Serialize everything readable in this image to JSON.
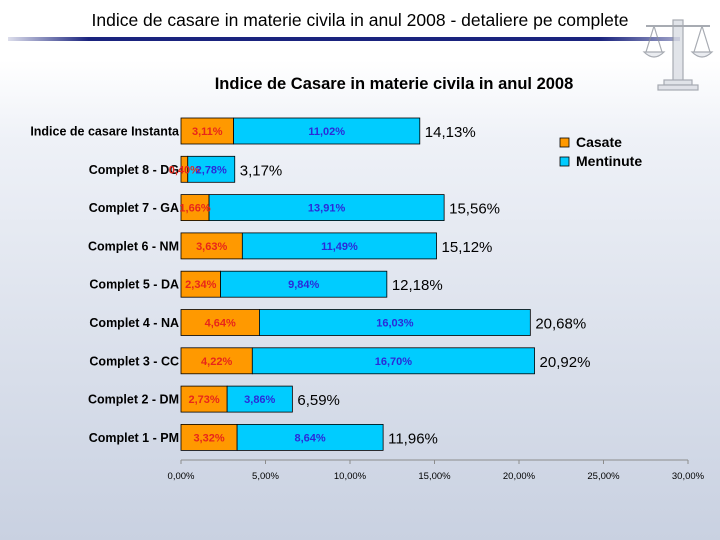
{
  "slide": {
    "title": "Indice de casare in materie civila in anul 2008 - detaliere pe complete"
  },
  "logo": {
    "icon": "scales-of-justice-icon"
  },
  "colors": {
    "casate": "#FF9900",
    "mentinute": "#00CCFF",
    "casate_label": "#E8261A",
    "mentinute_label": "#2B2BD9",
    "total_label": "#000000"
  },
  "chart_data": {
    "type": "bar",
    "orientation": "horizontal",
    "stacked": true,
    "title": "Indice de Casare in materie civila in anul 2008",
    "xlabel": "",
    "ylabel": "",
    "xlim": [
      0,
      30
    ],
    "x_ticks": [
      "0,00%",
      "5,00%",
      "10,00%",
      "15,00%",
      "20,00%",
      "25,00%",
      "30,00%"
    ],
    "legend_position": "top-right",
    "grid": false,
    "categories": [
      "Indice de casare Instanta",
      "Complet 8 - DG",
      "Complet 7 - GA",
      "Complet 6 - NM",
      "Complet 5 - DA",
      "Complet 4 - NA",
      "Complet 3 - CC",
      "Complet 2 - DM",
      "Complet 1 - PM"
    ],
    "series": [
      {
        "name": "Casate",
        "values": [
          3.11,
          0.4,
          1.66,
          3.63,
          2.34,
          4.64,
          4.22,
          2.73,
          3.32
        ],
        "labels": [
          "3,11%",
          "0,40%",
          "1,66%",
          "3,63%",
          "2,34%",
          "4,64%",
          "4,22%",
          "2,73%",
          "3,32%"
        ]
      },
      {
        "name": "Mentinute",
        "values": [
          11.02,
          2.78,
          13.91,
          11.49,
          9.84,
          16.03,
          16.7,
          3.86,
          8.64
        ],
        "labels": [
          "11,02%",
          "2,78%",
          "13,91%",
          "11,49%",
          "9,84%",
          "16,03%",
          "16,70%",
          "3,86%",
          "8,64%"
        ]
      }
    ],
    "totals": [
      "14,13%",
      "3,17%",
      "15,56%",
      "15,12%",
      "12,18%",
      "20,68%",
      "20,92%",
      "6,59%",
      "11,96%"
    ]
  }
}
